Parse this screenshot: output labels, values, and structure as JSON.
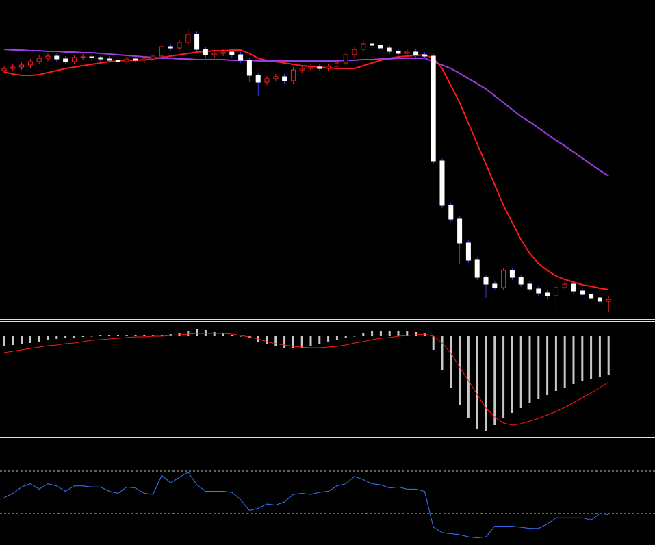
{
  "chart_data": [
    {
      "type": "candlestick",
      "ylim": [
        0,
        455
      ],
      "up_color": "#ff2020",
      "down_color": "#ffffff",
      "wick_color": "#3a3aff",
      "open": [
        352,
        355,
        357,
        360,
        365,
        370,
        373,
        369,
        365,
        371,
        372,
        371,
        369,
        367,
        365,
        369,
        367,
        369,
        373,
        387,
        385,
        393,
        405,
        383,
        375,
        377,
        379,
        375,
        367,
        345,
        335,
        340,
        343,
        337,
        353,
        355,
        357,
        355,
        358,
        363,
        375,
        383,
        391,
        389,
        385,
        380,
        377,
        379,
        375,
        373,
        220,
        155,
        135,
        100,
        75,
        50,
        40,
        35,
        60,
        50,
        40,
        33,
        27,
        23,
        35,
        40,
        30,
        25,
        20,
        15
      ],
      "high": [
        359,
        361,
        364,
        369,
        374,
        377,
        377,
        373,
        375,
        376,
        376,
        375,
        373,
        371,
        373,
        373,
        373,
        377,
        391,
        391,
        397,
        412,
        409,
        387,
        381,
        383,
        383,
        379,
        371,
        349,
        344,
        347,
        347,
        357,
        359,
        361,
        361,
        362,
        367,
        379,
        387,
        395,
        395,
        393,
        389,
        384,
        383,
        383,
        379,
        377,
        224,
        159,
        139,
        104,
        79,
        54,
        44,
        64,
        64,
        54,
        44,
        37,
        31,
        39,
        44,
        44,
        34,
        29,
        24,
        22
      ],
      "low": [
        348,
        351,
        353,
        356,
        361,
        366,
        365,
        361,
        361,
        367,
        367,
        365,
        363,
        361,
        361,
        363,
        363,
        365,
        369,
        381,
        381,
        389,
        379,
        371,
        371,
        373,
        371,
        363,
        335,
        315,
        331,
        336,
        333,
        333,
        349,
        351,
        351,
        351,
        354,
        359,
        371,
        379,
        385,
        381,
        376,
        373,
        373,
        371,
        369,
        216,
        151,
        131,
        70,
        71,
        46,
        20,
        31,
        31,
        46,
        36,
        29,
        23,
        19,
        5,
        31,
        26,
        21,
        16,
        11,
        0
      ],
      "close": [
        355,
        357,
        360,
        365,
        370,
        373,
        369,
        365,
        371,
        372,
        371,
        369,
        367,
        365,
        369,
        367,
        369,
        373,
        387,
        385,
        393,
        405,
        383,
        375,
        377,
        379,
        375,
        367,
        345,
        335,
        340,
        343,
        337,
        353,
        355,
        357,
        355,
        358,
        363,
        375,
        383,
        391,
        389,
        385,
        380,
        377,
        379,
        375,
        373,
        220,
        155,
        135,
        100,
        75,
        50,
        40,
        35,
        60,
        50,
        40,
        33,
        27,
        23,
        35,
        40,
        30,
        25,
        20,
        15,
        18
      ],
      "overlays": [
        {
          "color": "#ff1a1a",
          "values": [
            350,
            347,
            345,
            345,
            346,
            349,
            352,
            355,
            357,
            359,
            361,
            363,
            365,
            366,
            367,
            367,
            368,
            369,
            371,
            373,
            375,
            377,
            379,
            380,
            381,
            381,
            382,
            382,
            377,
            370,
            367,
            365,
            363,
            361,
            359,
            358,
            357,
            356,
            355,
            355,
            355,
            359,
            363,
            367,
            370,
            372,
            373,
            374,
            375,
            370,
            355,
            330,
            305,
            275,
            245,
            215,
            185,
            155,
            130,
            105,
            85,
            70,
            60,
            52,
            47,
            43,
            39,
            37,
            34,
            32
          ]
        },
        {
          "color": "#9a3ee0",
          "values": [
            383,
            382,
            382,
            381,
            381,
            380,
            380,
            379,
            379,
            378,
            378,
            377,
            376,
            375,
            374,
            373,
            372,
            371,
            370,
            370,
            369,
            369,
            368,
            368,
            368,
            368,
            367,
            367,
            367,
            366,
            366,
            366,
            366,
            366,
            366,
            366,
            366,
            366,
            366,
            367,
            367,
            368,
            368,
            369,
            369,
            370,
            370,
            370,
            370,
            365,
            360,
            355,
            348,
            340,
            333,
            325,
            315,
            305,
            295,
            285,
            277,
            268,
            259,
            250,
            242,
            233,
            224,
            215,
            206,
            198
          ]
        }
      ]
    },
    {
      "type": "bar",
      "ylim": [
        -145,
        19
      ],
      "color": "#c8c8c8",
      "values": [
        -14,
        -13,
        -12,
        -10,
        -8,
        -6,
        -4,
        -3,
        -2,
        -1,
        0,
        1,
        1,
        1,
        2,
        2,
        2,
        2,
        2,
        3,
        4,
        7,
        10,
        9,
        6,
        4,
        2,
        0,
        -3,
        -8,
        -12,
        -15,
        -17,
        -18,
        -17,
        -15,
        -12,
        -9,
        -6,
        -3,
        0,
        4,
        7,
        8,
        8,
        8,
        7,
        6,
        4,
        -20,
        -50,
        -75,
        -100,
        -120,
        -135,
        -138,
        -130,
        -120,
        -112,
        -105,
        -98,
        -92,
        -86,
        -80,
        -75,
        -70,
        -66,
        -62,
        -59,
        -57
      ],
      "series": [
        {
          "color": "#ff1a1a",
          "values": [
            -24,
            -22,
            -20,
            -18,
            -16,
            -14,
            -13,
            -11,
            -10,
            -8,
            -6,
            -5,
            -4,
            -3,
            -2,
            -1,
            -1,
            0,
            0,
            1,
            2,
            3,
            4,
            4,
            4,
            4,
            3,
            1,
            -1,
            -4,
            -8,
            -11,
            -13,
            -15,
            -16,
            -17,
            -17,
            -16,
            -15,
            -13,
            -10,
            -8,
            -5,
            -3,
            -2,
            0,
            1,
            2,
            3,
            0,
            -10,
            -25,
            -45,
            -65,
            -85,
            -105,
            -118,
            -127,
            -130,
            -128,
            -124,
            -120,
            -115,
            -110,
            -104,
            -97,
            -90,
            -83,
            -75,
            -67
          ]
        }
      ]
    },
    {
      "type": "line",
      "ylim": [
        0,
        100
      ],
      "color": "#3a7bff",
      "levels": [
        30,
        70
      ],
      "level_color": "#c8c8c8",
      "values": [
        45,
        49,
        55,
        58,
        53,
        58,
        56,
        51,
        56,
        56,
        55,
        55,
        51,
        49,
        55,
        54,
        49,
        48,
        66,
        59,
        64,
        69,
        57,
        51,
        51,
        51,
        50,
        43,
        33,
        35,
        39,
        38,
        41,
        48,
        49,
        48,
        50,
        51,
        56,
        58,
        65,
        62,
        58,
        57,
        54,
        55,
        53,
        53,
        51,
        17,
        12,
        11,
        10,
        8,
        7,
        8,
        18,
        18,
        18,
        17,
        16,
        16,
        20,
        26,
        26,
        26,
        26,
        24,
        30,
        29
      ]
    }
  ]
}
